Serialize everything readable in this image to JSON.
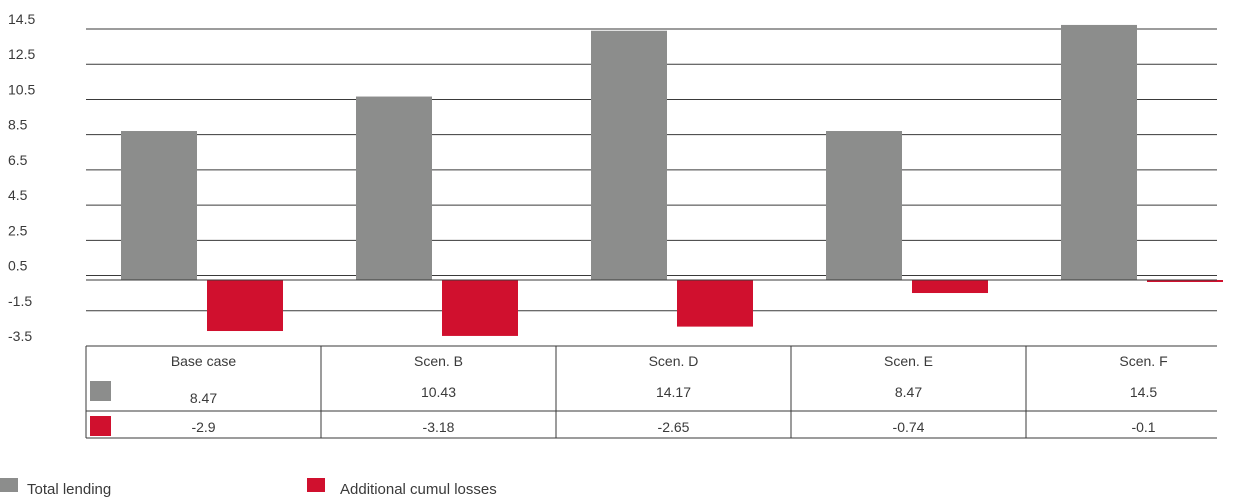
{
  "chart_data": {
    "type": "bar",
    "categories": [
      "Base case",
      "Scen. B",
      "Scen. D",
      "Scen. E",
      "Scen. F"
    ],
    "series": [
      {
        "name": "Total lending",
        "values": [
          8.47,
          10.43,
          14.17,
          8.47,
          14.5
        ],
        "color": "#8c8d8c",
        "labels": [
          "8.47",
          "10.43",
          "14.17",
          "8.47",
          "14.5"
        ]
      },
      {
        "name": "Additional cumul losses",
        "values": [
          -2.9,
          -3.18,
          -2.65,
          -0.74,
          -0.1
        ],
        "color": "#d0102e",
        "labels": [
          "-2.9",
          "-3.18",
          "-2.65",
          "-0.74",
          "-0.1"
        ]
      }
    ],
    "y_ticks": [
      "14.5",
      "12.5",
      "10.5",
      "8.5",
      "6.5",
      "4.5",
      "2.5",
      "0.5",
      "-1.5",
      "-3.5"
    ],
    "ylim": [
      -3.5,
      14.5
    ],
    "grid": true,
    "data_table": true,
    "legend_position": "bottom-left"
  }
}
